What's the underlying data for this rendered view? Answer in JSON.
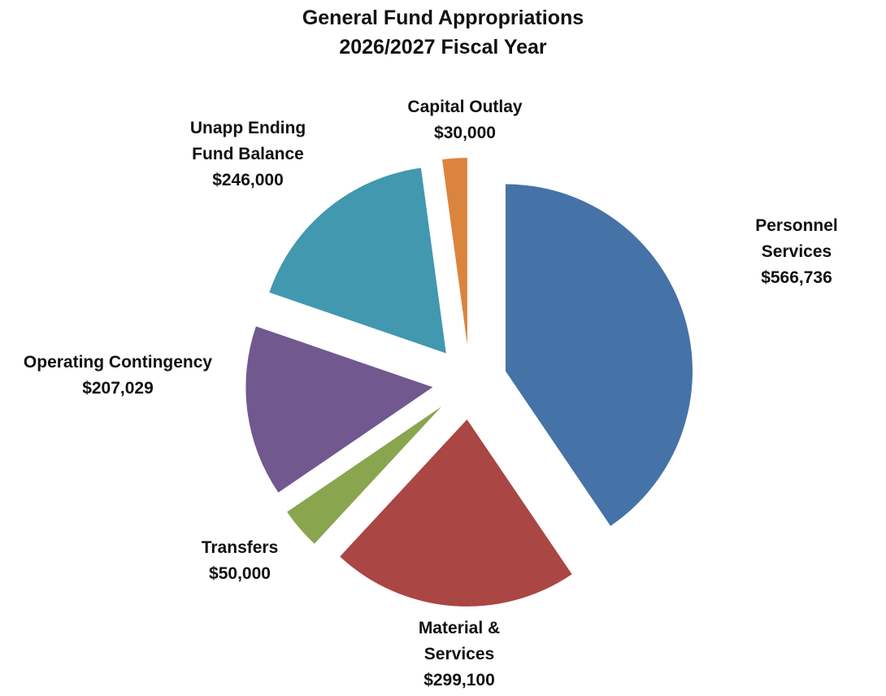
{
  "chart_data": {
    "type": "pie",
    "title": "General Fund Appropriations",
    "subtitle": "2026/2027 Fiscal Year",
    "categories": [
      "Personnel Services",
      "Material & Services",
      "Transfers",
      "Operating Contingency",
      "Unapp Ending Fund Balance",
      "Capital Outlay"
    ],
    "values": [
      566736,
      299100,
      50000,
      207029,
      246000,
      30000
    ],
    "value_labels": [
      "$566,736",
      "$299,100",
      "$50,000",
      "$207,029",
      "$246,000",
      "$30,000"
    ],
    "colors": [
      "#4572a7",
      "#aa4643",
      "#89a54e",
      "#71588f",
      "#4198af",
      "#db843d"
    ],
    "exploded": true
  }
}
